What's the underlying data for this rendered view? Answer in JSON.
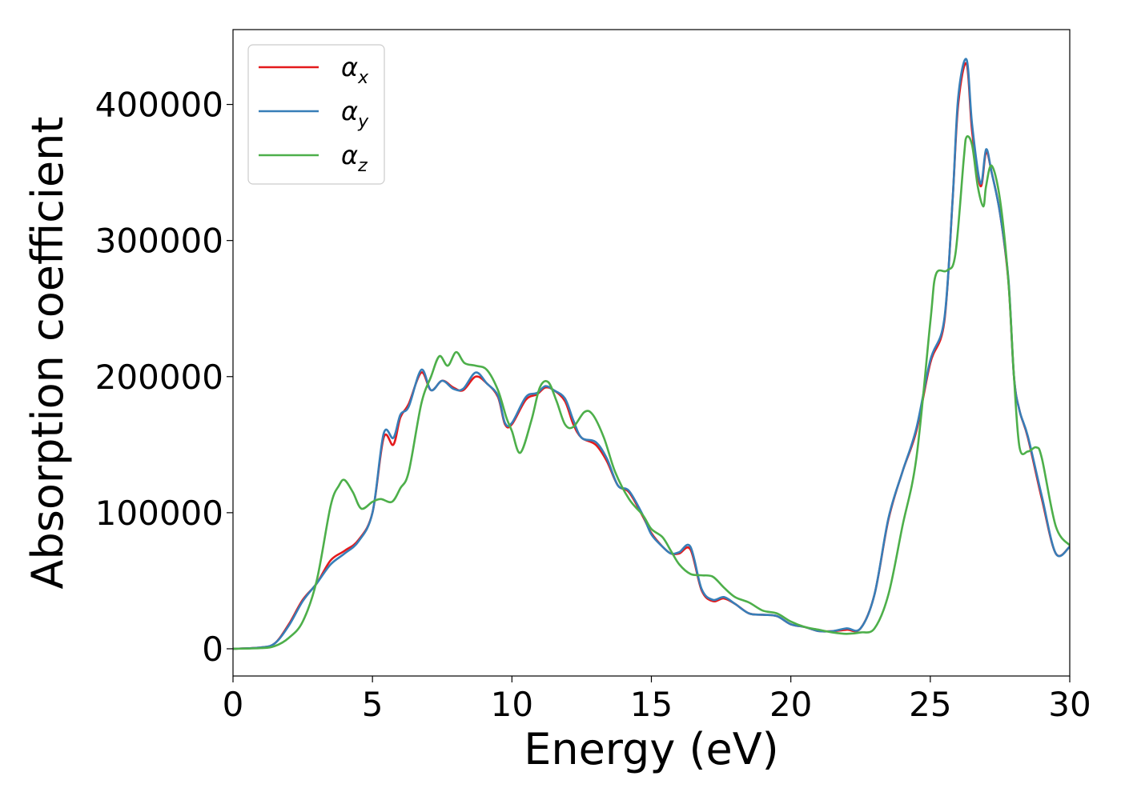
{
  "chart_data": {
    "type": "line",
    "title": "",
    "xlabel": "Energy (eV)",
    "ylabel": "Absorption coefficient",
    "xlim": [
      0,
      30
    ],
    "ylim": [
      -20000,
      455000
    ],
    "xticks": [
      0,
      5,
      10,
      15,
      20,
      25,
      30
    ],
    "xtick_labels": [
      "0",
      "5",
      "10",
      "15",
      "20",
      "25",
      "30"
    ],
    "yticks": [
      0,
      100000,
      200000,
      300000,
      400000
    ],
    "ytick_labels": [
      "0",
      "100000",
      "200000",
      "300000",
      "400000"
    ],
    "grid": false,
    "legend_position": "top-left",
    "series": [
      {
        "name": "αx",
        "legend_symbol": "α",
        "legend_subscript": "x",
        "color": "#e41a1c",
        "x": [
          0,
          1,
          1.5,
          2,
          2.5,
          3,
          3.5,
          4,
          4.5,
          5,
          5.4,
          5.75,
          6,
          6.3,
          6.75,
          7.1,
          7.5,
          7.9,
          8.25,
          8.7,
          9.1,
          9.5,
          9.75,
          10,
          10.5,
          10.9,
          11.2,
          11.5,
          11.9,
          12.2,
          12.5,
          13,
          13.4,
          13.8,
          14.2,
          14.7,
          15,
          15.4,
          15.7,
          16,
          16.4,
          16.8,
          17.2,
          17.6,
          18,
          18.5,
          19,
          19.5,
          20,
          20.5,
          21,
          21.5,
          22,
          22.5,
          23,
          23.5,
          24,
          24.5,
          25,
          25.5,
          25.8,
          26,
          26.3,
          26.5,
          26.8,
          27,
          27.2,
          27.5,
          27.8,
          28,
          28.2,
          28.5,
          29,
          29.5,
          30
        ],
        "y": [
          0,
          1000,
          4000,
          18000,
          36000,
          48000,
          65000,
          72000,
          80000,
          100000,
          155000,
          150000,
          170000,
          180000,
          203000,
          190000,
          197000,
          192000,
          190000,
          200000,
          195000,
          185000,
          165000,
          165000,
          183000,
          187000,
          192000,
          190000,
          182000,
          165000,
          155000,
          150000,
          138000,
          120000,
          115000,
          97000,
          85000,
          75000,
          70000,
          70000,
          73000,
          43000,
          35000,
          37000,
          33000,
          26000,
          25000,
          24000,
          18000,
          16000,
          13000,
          13000,
          14000,
          15000,
          40000,
          95000,
          130000,
          160000,
          210000,
          240000,
          330000,
          400000,
          430000,
          380000,
          340000,
          365000,
          350000,
          320000,
          270000,
          200000,
          175000,
          155000,
          110000,
          70000,
          75000
        ]
      },
      {
        "name": "αy",
        "legend_symbol": "α",
        "legend_subscript": "y",
        "color": "#377eb8",
        "x": [
          0,
          1,
          1.5,
          2,
          2.5,
          3,
          3.5,
          4,
          4.5,
          5,
          5.4,
          5.75,
          6,
          6.3,
          6.75,
          7.1,
          7.5,
          7.9,
          8.25,
          8.7,
          9.1,
          9.5,
          9.75,
          10,
          10.5,
          10.9,
          11.2,
          11.5,
          11.9,
          12.2,
          12.5,
          13,
          13.4,
          13.8,
          14.2,
          14.7,
          15,
          15.4,
          15.7,
          16,
          16.4,
          16.8,
          17.2,
          17.6,
          18,
          18.5,
          19,
          19.5,
          20,
          20.5,
          21,
          21.5,
          22,
          22.5,
          23,
          23.5,
          24,
          24.5,
          25,
          25.5,
          25.8,
          26,
          26.3,
          26.5,
          26.8,
          27,
          27.2,
          27.5,
          27.8,
          28,
          28.2,
          28.5,
          29,
          29.5,
          30
        ],
        "y": [
          0,
          1000,
          4000,
          17000,
          35000,
          48000,
          62000,
          70000,
          79000,
          100000,
          158000,
          155000,
          172000,
          178000,
          205000,
          190000,
          197000,
          191000,
          191000,
          203000,
          195000,
          186000,
          166000,
          166000,
          185000,
          188000,
          193000,
          190000,
          184000,
          168000,
          155000,
          152000,
          140000,
          120000,
          116000,
          98000,
          84000,
          75000,
          70000,
          71000,
          75000,
          44000,
          36000,
          38000,
          33000,
          26000,
          25000,
          24000,
          18000,
          16000,
          13000,
          13000,
          15000,
          15000,
          40000,
          96000,
          130000,
          162000,
          212000,
          242000,
          330000,
          405000,
          433000,
          385000,
          342000,
          367000,
          350000,
          320000,
          272000,
          200000,
          175000,
          156000,
          112000,
          70000,
          75000
        ]
      },
      {
        "name": "αz",
        "legend_symbol": "α",
        "legend_subscript": "z",
        "color": "#4daf4a",
        "x": [
          0,
          1,
          1.5,
          2,
          2.5,
          3,
          3.5,
          3.8,
          4,
          4.3,
          4.6,
          5,
          5.3,
          5.7,
          6,
          6.3,
          6.75,
          7.1,
          7.4,
          7.7,
          8,
          8.3,
          8.7,
          9.1,
          9.5,
          9.8,
          10,
          10.3,
          10.7,
          11,
          11.3,
          11.6,
          11.9,
          12.2,
          12.6,
          12.9,
          13.3,
          13.7,
          14.2,
          14.7,
          15,
          15.4,
          15.7,
          16,
          16.4,
          16.8,
          17.2,
          17.6,
          18,
          18.5,
          19,
          19.5,
          20,
          20.5,
          21,
          21.5,
          22,
          22.5,
          23,
          23.5,
          24,
          24.5,
          25,
          25.2,
          25.6,
          25.9,
          26.2,
          26.3,
          26.5,
          26.7,
          26.9,
          27,
          27.2,
          27.5,
          27.8,
          28,
          28.2,
          28.5,
          28.8,
          29,
          29.5,
          30
        ],
        "y": [
          0,
          500,
          2000,
          8000,
          20000,
          50000,
          105000,
          120000,
          124000,
          115000,
          103000,
          108000,
          110000,
          108000,
          118000,
          130000,
          180000,
          200000,
          215000,
          208000,
          218000,
          210000,
          208000,
          205000,
          190000,
          170000,
          160000,
          144000,
          168000,
          192000,
          196000,
          182000,
          165000,
          163000,
          174000,
          172000,
          155000,
          130000,
          110000,
          98000,
          88000,
          82000,
          72000,
          62000,
          55000,
          54000,
          53000,
          45000,
          38000,
          34000,
          28000,
          26000,
          20000,
          16000,
          14000,
          12000,
          11000,
          12000,
          15000,
          40000,
          90000,
          140000,
          240000,
          275000,
          278000,
          290000,
          360000,
          376000,
          370000,
          340000,
          325000,
          340000,
          355000,
          330000,
          270000,
          200000,
          148000,
          145000,
          148000,
          140000,
          90000,
          76000
        ]
      }
    ]
  }
}
